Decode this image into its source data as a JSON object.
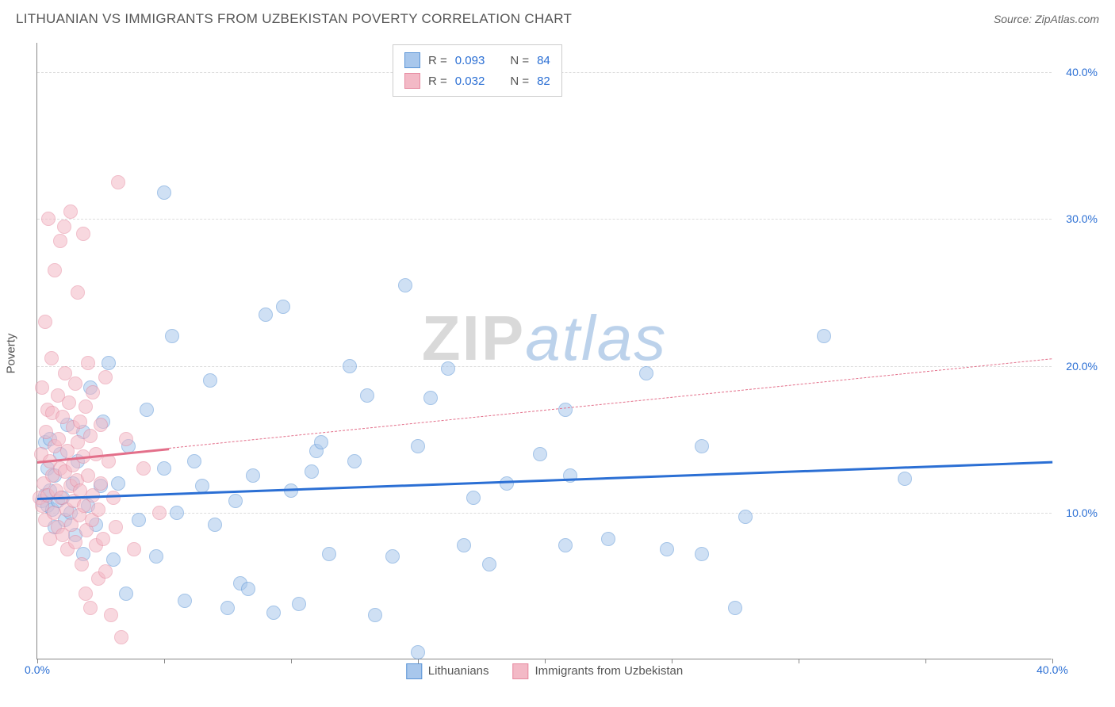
{
  "title": "LITHUANIAN VS IMMIGRANTS FROM UZBEKISTAN POVERTY CORRELATION CHART",
  "source_prefix": "Source: ",
  "source_name": "ZipAtlas.com",
  "ylabel": "Poverty",
  "watermark_a": "ZIP",
  "watermark_b": "atlas",
  "chart": {
    "type": "scatter",
    "xlim": [
      0,
      40
    ],
    "ylim": [
      0,
      42
    ],
    "xtick_positions": [
      0,
      5,
      10,
      15,
      20,
      25,
      30,
      35,
      40
    ],
    "xtick_labels": [
      "0.0%",
      "",
      "",
      "",
      "",
      "",
      "",
      "",
      "40.0%"
    ],
    "ytick_positions": [
      10,
      20,
      30,
      40
    ],
    "ytick_labels": [
      "10.0%",
      "20.0%",
      "30.0%",
      "40.0%"
    ],
    "ytick_color": "#2b6fd4",
    "xtick_color": "#2b6fd4",
    "grid_color": "#dddddd",
    "axis_color": "#888888",
    "background": "#ffffff",
    "marker_radius": 9,
    "marker_opacity": 0.55,
    "label_fontsize": 15,
    "tick_fontsize": 14
  },
  "series": [
    {
      "name": "Lithuanians",
      "color_fill": "#a8c7ec",
      "color_stroke": "#5a94d6",
      "trend_color": "#2b6fd4",
      "R": "0.093",
      "N": "84",
      "trend": {
        "x0": 0,
        "y0": 11.0,
        "x1": 40,
        "y1": 13.5,
        "solid_to_x": 40
      },
      "points": [
        [
          0.2,
          10.8
        ],
        [
          0.3,
          11.2
        ],
        [
          0.3,
          14.8
        ],
        [
          0.4,
          10.5
        ],
        [
          0.4,
          13.0
        ],
        [
          0.5,
          11.5
        ],
        [
          0.5,
          15.0
        ],
        [
          0.6,
          10.2
        ],
        [
          0.7,
          9.0
        ],
        [
          0.7,
          12.5
        ],
        [
          0.8,
          10.8
        ],
        [
          0.9,
          14.0
        ],
        [
          1.0,
          11.0
        ],
        [
          1.1,
          9.5
        ],
        [
          1.2,
          16.0
        ],
        [
          1.3,
          10.0
        ],
        [
          1.4,
          12.0
        ],
        [
          1.5,
          8.5
        ],
        [
          1.6,
          13.5
        ],
        [
          1.8,
          15.5
        ],
        [
          1.8,
          7.2
        ],
        [
          2.0,
          10.5
        ],
        [
          2.1,
          18.5
        ],
        [
          2.3,
          9.2
        ],
        [
          2.5,
          11.8
        ],
        [
          2.6,
          16.2
        ],
        [
          2.8,
          20.2
        ],
        [
          3.0,
          6.8
        ],
        [
          3.2,
          12.0
        ],
        [
          3.5,
          4.5
        ],
        [
          3.6,
          14.5
        ],
        [
          4.0,
          9.5
        ],
        [
          4.3,
          17.0
        ],
        [
          4.7,
          7.0
        ],
        [
          5.0,
          31.8
        ],
        [
          5.0,
          13.0
        ],
        [
          5.3,
          22.0
        ],
        [
          5.5,
          10.0
        ],
        [
          5.8,
          4.0
        ],
        [
          6.2,
          13.5
        ],
        [
          6.5,
          11.8
        ],
        [
          6.8,
          19.0
        ],
        [
          7.0,
          9.2
        ],
        [
          7.5,
          3.5
        ],
        [
          7.8,
          10.8
        ],
        [
          8.0,
          5.2
        ],
        [
          8.3,
          4.8
        ],
        [
          8.5,
          12.5
        ],
        [
          9.0,
          23.5
        ],
        [
          9.3,
          3.2
        ],
        [
          9.7,
          24.0
        ],
        [
          10.0,
          11.5
        ],
        [
          10.3,
          3.8
        ],
        [
          10.8,
          12.8
        ],
        [
          11.0,
          14.2
        ],
        [
          11.2,
          14.8
        ],
        [
          11.5,
          7.2
        ],
        [
          12.3,
          20.0
        ],
        [
          12.5,
          13.5
        ],
        [
          13.0,
          18.0
        ],
        [
          13.3,
          3.0
        ],
        [
          14.0,
          7.0
        ],
        [
          14.5,
          25.5
        ],
        [
          15.0,
          14.5
        ],
        [
          15.0,
          0.5
        ],
        [
          15.5,
          17.8
        ],
        [
          16.2,
          19.8
        ],
        [
          16.8,
          7.8
        ],
        [
          17.2,
          11.0
        ],
        [
          17.8,
          6.5
        ],
        [
          18.5,
          12.0
        ],
        [
          19.8,
          14.0
        ],
        [
          20.8,
          17.0
        ],
        [
          20.8,
          7.8
        ],
        [
          21.0,
          12.5
        ],
        [
          22.5,
          8.2
        ],
        [
          24.0,
          19.5
        ],
        [
          24.8,
          7.5
        ],
        [
          26.2,
          7.2
        ],
        [
          26.2,
          14.5
        ],
        [
          27.5,
          3.5
        ],
        [
          27.9,
          9.7
        ],
        [
          31.0,
          22.0
        ],
        [
          34.2,
          12.3
        ]
      ]
    },
    {
      "name": "Immigrants from Uzbekistan",
      "color_fill": "#f3b9c6",
      "color_stroke": "#e68aa0",
      "trend_color": "#e36f8a",
      "R": "0.032",
      "N": "82",
      "trend": {
        "x0": 0,
        "y0": 13.5,
        "x1": 40,
        "y1": 20.5,
        "solid_to_x": 5.2
      },
      "points": [
        [
          0.1,
          11.0
        ],
        [
          0.15,
          14.0
        ],
        [
          0.2,
          10.5
        ],
        [
          0.2,
          18.5
        ],
        [
          0.25,
          12.0
        ],
        [
          0.3,
          23.0
        ],
        [
          0.3,
          9.5
        ],
        [
          0.35,
          15.5
        ],
        [
          0.4,
          11.2
        ],
        [
          0.4,
          17.0
        ],
        [
          0.45,
          30.0
        ],
        [
          0.5,
          13.5
        ],
        [
          0.5,
          8.2
        ],
        [
          0.55,
          20.5
        ],
        [
          0.6,
          12.5
        ],
        [
          0.6,
          16.8
        ],
        [
          0.65,
          10.0
        ],
        [
          0.7,
          14.5
        ],
        [
          0.7,
          26.5
        ],
        [
          0.75,
          11.5
        ],
        [
          0.8,
          18.0
        ],
        [
          0.8,
          9.0
        ],
        [
          0.85,
          15.0
        ],
        [
          0.9,
          13.0
        ],
        [
          0.9,
          28.5
        ],
        [
          0.95,
          11.0
        ],
        [
          1.0,
          16.5
        ],
        [
          1.0,
          8.5
        ],
        [
          1.05,
          29.5
        ],
        [
          1.1,
          12.8
        ],
        [
          1.1,
          19.5
        ],
        [
          1.15,
          10.2
        ],
        [
          1.2,
          14.2
        ],
        [
          1.2,
          7.5
        ],
        [
          1.25,
          17.5
        ],
        [
          1.3,
          11.8
        ],
        [
          1.3,
          30.5
        ],
        [
          1.35,
          9.2
        ],
        [
          1.4,
          15.8
        ],
        [
          1.4,
          13.2
        ],
        [
          1.45,
          10.8
        ],
        [
          1.5,
          18.8
        ],
        [
          1.5,
          8.0
        ],
        [
          1.55,
          12.2
        ],
        [
          1.6,
          14.8
        ],
        [
          1.6,
          25.0
        ],
        [
          1.65,
          9.8
        ],
        [
          1.7,
          16.2
        ],
        [
          1.7,
          11.5
        ],
        [
          1.75,
          6.5
        ],
        [
          1.8,
          13.8
        ],
        [
          1.8,
          29.0
        ],
        [
          1.85,
          10.5
        ],
        [
          1.9,
          17.2
        ],
        [
          1.9,
          4.5
        ],
        [
          1.95,
          8.8
        ],
        [
          2.0,
          12.5
        ],
        [
          2.0,
          20.2
        ],
        [
          2.1,
          15.2
        ],
        [
          2.1,
          3.5
        ],
        [
          2.15,
          9.5
        ],
        [
          2.2,
          11.2
        ],
        [
          2.2,
          18.2
        ],
        [
          2.3,
          7.8
        ],
        [
          2.3,
          14.0
        ],
        [
          2.4,
          10.2
        ],
        [
          2.4,
          5.5
        ],
        [
          2.5,
          16.0
        ],
        [
          2.5,
          12.0
        ],
        [
          2.6,
          8.2
        ],
        [
          2.7,
          19.2
        ],
        [
          2.7,
          6.0
        ],
        [
          2.8,
          13.5
        ],
        [
          2.9,
          3.0
        ],
        [
          3.0,
          11.0
        ],
        [
          3.1,
          9.0
        ],
        [
          3.2,
          32.5
        ],
        [
          3.3,
          1.5
        ],
        [
          3.5,
          15.0
        ],
        [
          3.8,
          7.5
        ],
        [
          4.2,
          13.0
        ],
        [
          4.8,
          10.0
        ]
      ]
    }
  ],
  "stats_legend": {
    "R_label": "R =",
    "N_label": "N ="
  },
  "bottom_legend_labels": [
    "Lithuanians",
    "Immigrants from Uzbekistan"
  ]
}
